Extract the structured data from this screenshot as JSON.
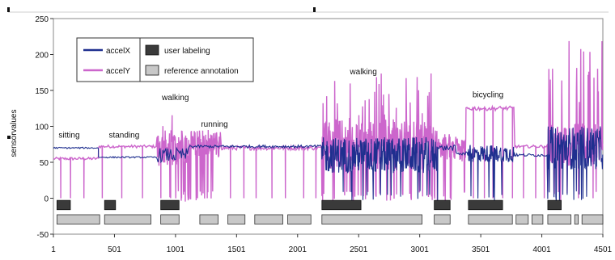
{
  "chart_data": {
    "type": "line",
    "ylabel": "sensorvalues",
    "xlim": [
      1,
      4501
    ],
    "ylim": [
      -50,
      250
    ],
    "yticks": [
      -50,
      0,
      50,
      100,
      150,
      200,
      250
    ],
    "xticks": [
      1,
      501,
      1001,
      1501,
      2001,
      2501,
      3001,
      3501,
      4001,
      4501
    ],
    "grid": false,
    "legend_position": "top-left",
    "legend": [
      {
        "label": "accelX",
        "kind": "line",
        "color": "#1f2f8f"
      },
      {
        "label": "accelY",
        "kind": "line",
        "color": "#cc66cc"
      },
      {
        "label": "user labeling",
        "kind": "box",
        "color": "#3a3a3a"
      },
      {
        "label": "reference annotation",
        "kind": "box",
        "color": "#c8c8c8"
      }
    ],
    "activity_labels": [
      {
        "text": "sitting",
        "x": 130,
        "y": 80
      },
      {
        "text": "standing",
        "x": 580,
        "y": 80
      },
      {
        "text": "walking",
        "x": 1000,
        "y": 132
      },
      {
        "text": "running",
        "x": 1320,
        "y": 95
      },
      {
        "text": "walking",
        "x": 2540,
        "y": 168
      },
      {
        "text": "bicycling",
        "x": 3560,
        "y": 136
      }
    ],
    "series": [
      {
        "name": "accelX",
        "color": "#1f2f8f",
        "segments": [
          {
            "x0": 1,
            "x1": 370,
            "base": 70,
            "noise": 1,
            "spikes": 0
          },
          {
            "x0": 370,
            "x1": 850,
            "base": 57,
            "noise": 1,
            "spikes": 0
          },
          {
            "x0": 850,
            "x1": 1110,
            "base": 60,
            "noise": 10,
            "spikes": 0
          },
          {
            "x0": 1110,
            "x1": 2200,
            "base": 72,
            "noise": 2,
            "spikes": 0
          },
          {
            "x0": 2200,
            "x1": 3150,
            "base": 60,
            "noise": 25,
            "spikes": 0
          },
          {
            "x0": 3150,
            "x1": 3300,
            "base": 70,
            "noise": 4,
            "spikes": 0
          },
          {
            "x0": 3300,
            "x1": 3400,
            "base": 62,
            "noise": 3,
            "spikes": 0
          },
          {
            "x0": 3400,
            "x1": 3780,
            "base": 62,
            "noise": 12,
            "spikes": 0
          },
          {
            "x0": 3780,
            "x1": 4050,
            "base": 60,
            "noise": 2,
            "spikes": 0
          },
          {
            "x0": 4050,
            "x1": 4501,
            "base": 70,
            "noise": 30,
            "spikes": 0
          }
        ]
      },
      {
        "name": "accelY",
        "color": "#cc66cc",
        "segments": [
          {
            "x0": 1,
            "x1": 370,
            "base": 55,
            "noise": 2,
            "spikes": 0,
            "dropouts": [
              60,
              140,
              250
            ]
          },
          {
            "x0": 370,
            "x1": 850,
            "base": 72,
            "noise": 2,
            "spikes": 0,
            "dropouts": [
              400,
              560,
              730
            ]
          },
          {
            "x0": 850,
            "x1": 1110,
            "base": 70,
            "noise": 25,
            "spikes": 120,
            "dropouts": [
              880,
              960,
              1050
            ]
          },
          {
            "x0": 1110,
            "x1": 1380,
            "base": 75,
            "noise": 20,
            "spikes": 95,
            "dropouts": [
              1180,
              1260
            ]
          },
          {
            "x0": 1380,
            "x1": 2200,
            "base": 70,
            "noise": 3,
            "spikes": 0,
            "dropouts": [
              1450,
              1560,
              1660,
              1790,
              1900,
              2050,
              2150
            ]
          },
          {
            "x0": 2200,
            "x1": 3150,
            "base": 75,
            "noise": 35,
            "spikes": 175,
            "dropouts": []
          },
          {
            "x0": 3150,
            "x1": 3380,
            "base": 70,
            "noise": 20,
            "spikes": 80,
            "dropouts": [
              3250
            ]
          },
          {
            "x0": 3380,
            "x1": 3780,
            "base": 125,
            "noise": 3,
            "spikes": 0,
            "dropouts": [
              3440,
              3530,
              3600,
              3680,
              3760
            ]
          },
          {
            "x0": 3780,
            "x1": 4050,
            "base": 72,
            "noise": 2,
            "spikes": 0,
            "dropouts": [
              3850,
              3950,
              4020
            ]
          },
          {
            "x0": 4050,
            "x1": 4501,
            "base": 75,
            "noise": 30,
            "spikes": 225,
            "dropouts": [
              4150,
              4300,
              4420
            ]
          }
        ]
      }
    ],
    "user_labeling": [
      [
        30,
        140
      ],
      [
        420,
        510
      ],
      [
        880,
        1030
      ],
      [
        2200,
        2520
      ],
      [
        3120,
        3250
      ],
      [
        3400,
        3680
      ],
      [
        4050,
        4160
      ]
    ],
    "reference_annotation": [
      [
        30,
        380
      ],
      [
        420,
        800
      ],
      [
        880,
        1030
      ],
      [
        1200,
        1350
      ],
      [
        1430,
        1570
      ],
      [
        1650,
        1880
      ],
      [
        1920,
        2110
      ],
      [
        2200,
        3020
      ],
      [
        3120,
        3250
      ],
      [
        3400,
        3760
      ],
      [
        3790,
        3890
      ],
      [
        3920,
        4010
      ],
      [
        4050,
        4240
      ],
      [
        4270,
        4300
      ],
      [
        4330,
        4501
      ]
    ]
  }
}
